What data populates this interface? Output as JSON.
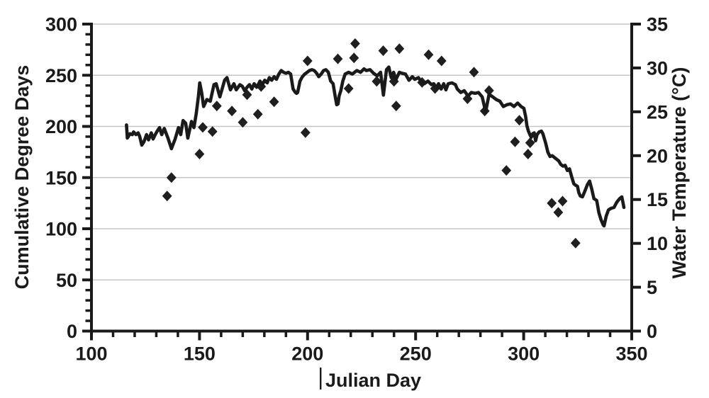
{
  "chart_data": {
    "type": "line+scatter",
    "title": "",
    "x_axis": {
      "label": "Julian Day",
      "min": 100,
      "max": 350,
      "major_ticks": [
        100,
        150,
        200,
        250,
        300,
        350
      ],
      "minor_tick_step": 10
    },
    "y_axis_left": {
      "label": "Cumulative Degree Days",
      "min": 0,
      "max": 300,
      "major_ticks": [
        0,
        50,
        100,
        150,
        200,
        250,
        300
      ],
      "minor_tick_step": 10
    },
    "y_axis_right": {
      "label": "Water Temperature (°C)",
      "min": 0,
      "max": 35,
      "major_ticks": [
        0,
        5,
        10,
        15,
        20,
        25,
        30,
        35
      ]
    },
    "grid": {
      "horizontal_major": true,
      "color": "#c6c6c6"
    },
    "ink_color": "#1a1a1a",
    "text_cursor_artifact": true,
    "series": [
      {
        "name": "Cumulative Degree Days",
        "type": "scatter",
        "marker": "diamond",
        "axis": "left",
        "color": "#1f1f1f",
        "points": [
          [
            135,
            132
          ],
          [
            137,
            150
          ],
          [
            150,
            173
          ],
          [
            151.5,
            199
          ],
          [
            156,
            195
          ],
          [
            158,
            220
          ],
          [
            165,
            215
          ],
          [
            170,
            204
          ],
          [
            172,
            231
          ],
          [
            177,
            212
          ],
          [
            178.5,
            239
          ],
          [
            184.5,
            224
          ],
          [
            199,
            194
          ],
          [
            200,
            264
          ],
          [
            214,
            266
          ],
          [
            219,
            237
          ],
          [
            221.5,
            267
          ],
          [
            222,
            281
          ],
          [
            232,
            244
          ],
          [
            235,
            274
          ],
          [
            240,
            244
          ],
          [
            241,
            220
          ],
          [
            242.5,
            276
          ],
          [
            253,
            243
          ],
          [
            256,
            270
          ],
          [
            259,
            237
          ],
          [
            262,
            264
          ],
          [
            274,
            227
          ],
          [
            277,
            253
          ],
          [
            282,
            215
          ],
          [
            284,
            235
          ],
          [
            292,
            157
          ],
          [
            296,
            185
          ],
          [
            298,
            206
          ],
          [
            302,
            173
          ],
          [
            303,
            184
          ],
          [
            313,
            125
          ],
          [
            316,
            116
          ],
          [
            318,
            127
          ],
          [
            324,
            86
          ]
        ]
      },
      {
        "name": "Water Temperature",
        "type": "line",
        "axis": "right",
        "color": "#1a1a1a",
        "stroke_width": 4.6,
        "points": [
          [
            116.2,
            23.5
          ],
          [
            116.6,
            22.0
          ],
          [
            117.8,
            22.5
          ],
          [
            118.9,
            22.4
          ],
          [
            119.5,
            22.7
          ],
          [
            120.6,
            22.4
          ],
          [
            121.6,
            22.6
          ],
          [
            122.3,
            22.2
          ],
          [
            123.3,
            21.2
          ],
          [
            124.3,
            21.6
          ],
          [
            125.5,
            22.4
          ],
          [
            126.4,
            21.8
          ],
          [
            127.7,
            22.6
          ],
          [
            128.5,
            21.9
          ],
          [
            129.3,
            22.3
          ],
          [
            130.4,
            22.8
          ],
          [
            131.5,
            23.2
          ],
          [
            132.5,
            22.4
          ],
          [
            133.7,
            23.1
          ],
          [
            135.4,
            22.0
          ],
          [
            137.0,
            20.8
          ],
          [
            138.7,
            21.9
          ],
          [
            140.3,
            23.2
          ],
          [
            141.3,
            22.4
          ],
          [
            142.4,
            24.0
          ],
          [
            143.6,
            23.7
          ],
          [
            144.6,
            22.0
          ],
          [
            146.3,
            23.9
          ],
          [
            147.4,
            23.2
          ],
          [
            148.5,
            24.8
          ],
          [
            149.5,
            26.8
          ],
          [
            150.1,
            28.3
          ],
          [
            151.0,
            27.2
          ],
          [
            151.9,
            25.6
          ],
          [
            153.4,
            26.4
          ],
          [
            155.0,
            26.2
          ],
          [
            156.7,
            28.1
          ],
          [
            157.7,
            28.2
          ],
          [
            159.4,
            26.7
          ],
          [
            161.6,
            28.6
          ],
          [
            162.7,
            28.9
          ],
          [
            164.3,
            27.5
          ],
          [
            165.9,
            28.2
          ],
          [
            167.0,
            27.5
          ],
          [
            168.7,
            28.1
          ],
          [
            169.8,
            27.9
          ],
          [
            170.9,
            27.4
          ],
          [
            172.0,
            27.8
          ],
          [
            173.1,
            28.1
          ],
          [
            174.2,
            27.6
          ],
          [
            175.3,
            28.2
          ],
          [
            176.4,
            27.8
          ],
          [
            177.4,
            28.2
          ],
          [
            178.0,
            28.5
          ],
          [
            179.1,
            28.1
          ],
          [
            180.2,
            28.6
          ],
          [
            181.3,
            28.3
          ],
          [
            182.3,
            28.9
          ],
          [
            183.4,
            28.6
          ],
          [
            184.5,
            29.0
          ],
          [
            185.6,
            28.7
          ],
          [
            186.7,
            29.3
          ],
          [
            187.8,
            29.7
          ],
          [
            188.9,
            29.5
          ],
          [
            190.0,
            29.4
          ],
          [
            191.1,
            29.5
          ],
          [
            192.2,
            29.3
          ],
          [
            193.3,
            27.6
          ],
          [
            194.4,
            27.2
          ],
          [
            194.9,
            27.1
          ],
          [
            195.4,
            27.2
          ],
          [
            196.5,
            28.5
          ],
          [
            197.6,
            29.0
          ],
          [
            198.7,
            29.3
          ],
          [
            199.8,
            29.5
          ],
          [
            200.9,
            29.7
          ],
          [
            202.0,
            29.8
          ],
          [
            203.1,
            29.7
          ],
          [
            204.2,
            29.4
          ],
          [
            205.2,
            29.0
          ],
          [
            206.3,
            29.3
          ],
          [
            207.4,
            29.7
          ],
          [
            208.5,
            29.8
          ],
          [
            209.6,
            29.5
          ],
          [
            210.7,
            28.5
          ],
          [
            211.8,
            28.2
          ],
          [
            212.9,
            26.6
          ],
          [
            213.5,
            25.8
          ],
          [
            214.1,
            25.9
          ],
          [
            214.6,
            26.8
          ],
          [
            215.4,
            27.4
          ],
          [
            216.3,
            28.5
          ],
          [
            217.4,
            29.3
          ],
          [
            219.0,
            29.5
          ],
          [
            220.7,
            29.3
          ],
          [
            222.8,
            29.7
          ],
          [
            224.5,
            29.5
          ],
          [
            226.1,
            29.9
          ],
          [
            227.2,
            29.7
          ],
          [
            228.9,
            29.8
          ],
          [
            230.5,
            29.4
          ],
          [
            232.2,
            29.1
          ],
          [
            233.8,
            29.5
          ],
          [
            235.1,
            26.9
          ],
          [
            236.5,
            29.8
          ],
          [
            237.6,
            30.1
          ],
          [
            238.7,
            28.9
          ],
          [
            239.8,
            29.5
          ],
          [
            240.9,
            28.7
          ],
          [
            242.5,
            29.5
          ],
          [
            243.6,
            29.4
          ],
          [
            245.3,
            29.3
          ],
          [
            246.9,
            28.6
          ],
          [
            248.5,
            29.0
          ],
          [
            249.6,
            28.7
          ],
          [
            251.3,
            28.9
          ],
          [
            252.4,
            28.5
          ],
          [
            254.0,
            28.2
          ],
          [
            255.7,
            28.5
          ],
          [
            257.3,
            28.1
          ],
          [
            258.4,
            28.2
          ],
          [
            259.5,
            27.7
          ],
          [
            260.6,
            28.2
          ],
          [
            261.8,
            27.6
          ],
          [
            263.0,
            28.2
          ],
          [
            264.0,
            27.5
          ],
          [
            265.1,
            28.2
          ],
          [
            266.8,
            28.3
          ],
          [
            268.4,
            28.1
          ],
          [
            269.3,
            27.6
          ],
          [
            270.9,
            27.2
          ],
          [
            272.5,
            27.4
          ],
          [
            274.2,
            26.8
          ],
          [
            275.8,
            27.2
          ],
          [
            277.5,
            27.1
          ],
          [
            279.1,
            27.2
          ],
          [
            280.8,
            26.7
          ],
          [
            282.4,
            25.0
          ],
          [
            284.0,
            27.0
          ],
          [
            285.7,
            26.7
          ],
          [
            287.3,
            26.4
          ],
          [
            289.0,
            26.2
          ],
          [
            290.6,
            25.6
          ],
          [
            292.2,
            25.8
          ],
          [
            293.9,
            25.9
          ],
          [
            295.5,
            25.6
          ],
          [
            297.2,
            26.0
          ],
          [
            298.8,
            25.6
          ],
          [
            300.1,
            25.4
          ],
          [
            300.9,
            24.5
          ],
          [
            301.5,
            23.4
          ],
          [
            302.2,
            22.8
          ],
          [
            302.9,
            22.4
          ],
          [
            303.5,
            22.1
          ],
          [
            304.2,
            22.5
          ],
          [
            304.9,
            22.6
          ],
          [
            305.5,
            21.7
          ],
          [
            306.2,
            22.4
          ],
          [
            307.2,
            22.7
          ],
          [
            308.2,
            22.8
          ],
          [
            308.9,
            22.5
          ],
          [
            310.2,
            21.4
          ],
          [
            311.2,
            20.4
          ],
          [
            312.2,
            19.9
          ],
          [
            313.2,
            20.0
          ],
          [
            314.2,
            19.8
          ],
          [
            315.2,
            19.6
          ],
          [
            316.2,
            19.4
          ],
          [
            317.2,
            19.0
          ],
          [
            318.2,
            18.8
          ],
          [
            319.2,
            18.9
          ],
          [
            320.2,
            18.3
          ],
          [
            321.2,
            18.5
          ],
          [
            322.2,
            17.6
          ],
          [
            323.2,
            16.8
          ],
          [
            324.2,
            16.6
          ],
          [
            324.9,
            16.5
          ],
          [
            325.5,
            15.8
          ],
          [
            326.2,
            15.4
          ],
          [
            327.2,
            15.3
          ],
          [
            328.2,
            15.9
          ],
          [
            329.5,
            16.7
          ],
          [
            330.5,
            17.1
          ],
          [
            331.5,
            16.2
          ],
          [
            332.5,
            15.1
          ],
          [
            333.8,
            14.9
          ],
          [
            334.8,
            13.5
          ],
          [
            335.8,
            12.7
          ],
          [
            336.8,
            12.1
          ],
          [
            337.2,
            12.0
          ],
          [
            338.2,
            13.1
          ],
          [
            339.2,
            13.8
          ],
          [
            340.5,
            14.0
          ],
          [
            341.8,
            14.1
          ],
          [
            343.1,
            14.7
          ],
          [
            344.4,
            15.1
          ],
          [
            345.4,
            15.3
          ],
          [
            346.0,
            14.6
          ],
          [
            346.4,
            14.1
          ]
        ]
      }
    ]
  }
}
